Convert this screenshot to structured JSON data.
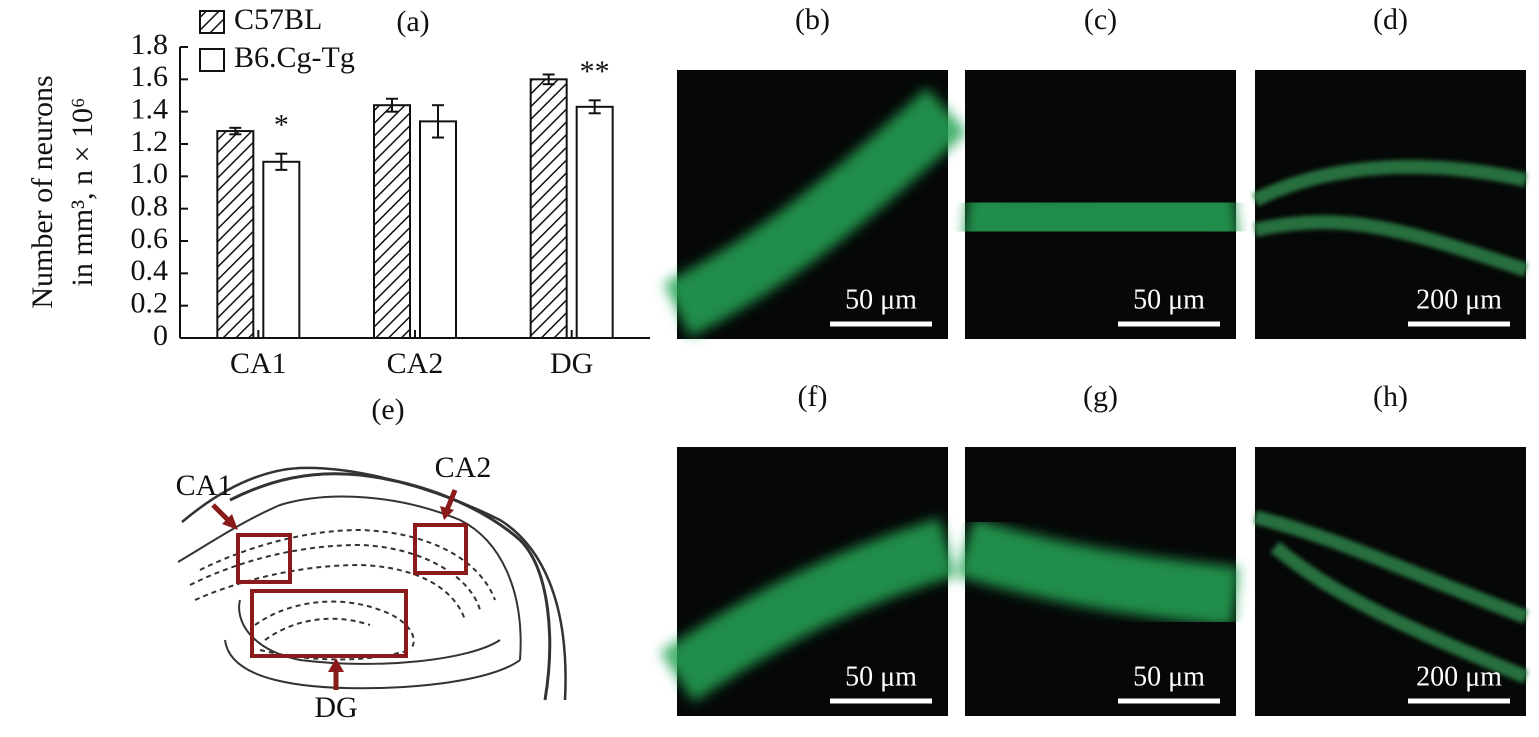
{
  "chart_data": {
    "type": "bar",
    "title": "(a)",
    "ylabel": [
      "Number of neurons",
      "in mm³, n × 10⁶"
    ],
    "categories": [
      "CA1",
      "CA2",
      "DG"
    ],
    "series": [
      {
        "name": "C57BL",
        "color": "#ffffff",
        "hatch": true,
        "values": [
          1.28,
          1.44,
          1.6
        ],
        "errors": [
          0.02,
          0.04,
          0.03
        ]
      },
      {
        "name": "B6.Cg-Tg",
        "color": "#ffffff",
        "hatch": false,
        "values": [
          1.09,
          1.34,
          1.43
        ],
        "errors": [
          0.05,
          0.1,
          0.04
        ]
      }
    ],
    "annotations": [
      {
        "text": "*",
        "category": "CA1"
      },
      {
        "text": "**",
        "category": "DG"
      }
    ],
    "ylim": [
      0,
      1.8
    ],
    "yticks": [
      0,
      0.2,
      0.4,
      0.6,
      0.8,
      {
        "value": 1,
        "label": "1.0"
      },
      1.2,
      1.4,
      1.6,
      1.8
    ],
    "legend": "top-left"
  },
  "panels": [
    {
      "label": "(b)",
      "scale": "50 μm"
    },
    {
      "label": "(c)",
      "scale": "50 μm"
    },
    {
      "label": "(d)",
      "scale": "200 μm"
    },
    {
      "label": "(f)",
      "scale": "50 μm"
    },
    {
      "label": "(g)",
      "scale": "50 μm"
    },
    {
      "label": "(h)",
      "scale": "200 μm"
    }
  ],
  "diagram": {
    "label": "(e)",
    "regions": [
      "CA1",
      "CA2",
      "DG"
    ]
  }
}
